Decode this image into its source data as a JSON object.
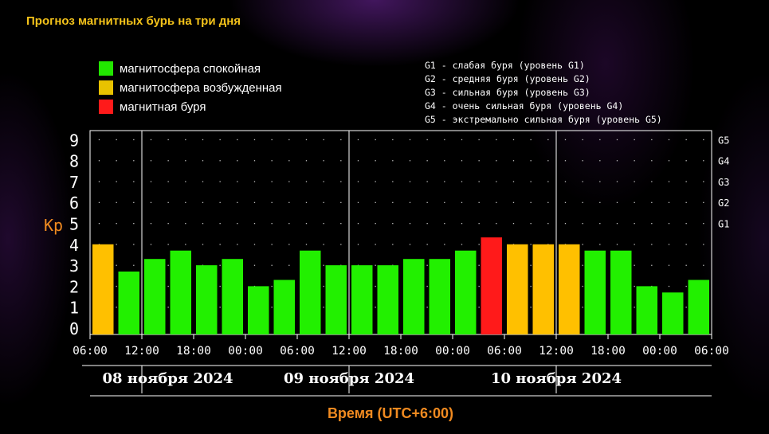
{
  "page": {
    "title": "Прогноз магнитных бурь на три дня"
  },
  "legend": {
    "items": [
      {
        "color": "#22e600",
        "label": "магнитосфера спокойная"
      },
      {
        "color": "#e8c200",
        "label": "магнитосфера возбужденная"
      },
      {
        "color": "#ff1a1a",
        "label": "магнитная буря"
      }
    ],
    "g_levels": [
      "G1 - слабая буря (уровень G1)",
      "G2 - средняя буря (уровень G2)",
      "G3 - сильная буря (уровень G3)",
      "G4 - очень сильная буря (уровень G4)",
      "G5 - экстремально сильная буря (уровень G5)"
    ]
  },
  "colors": {
    "quiet": "#22f000",
    "active": "#ffc000",
    "storm": "#ff1a1a",
    "axis_label": "#f08a20",
    "title": "#f3c21a"
  },
  "chart_data": {
    "type": "bar",
    "ylabel": "Kp",
    "xlabel": "Время (UTC+6:00)",
    "ylim": [
      0,
      9
    ],
    "y_ticks": [
      0,
      1,
      2,
      3,
      4,
      5,
      6,
      7,
      8,
      9
    ],
    "right_ticks": [
      {
        "value": 5,
        "label": "G1"
      },
      {
        "value": 6,
        "label": "G2"
      },
      {
        "value": 7,
        "label": "G3"
      },
      {
        "value": 8,
        "label": "G4"
      },
      {
        "value": 9,
        "label": "G5"
      }
    ],
    "x_tick_labels": [
      "06:00",
      "12:00",
      "18:00",
      "00:00",
      "06:00",
      "12:00",
      "18:00",
      "00:00",
      "06:00",
      "12:00",
      "18:00",
      "00:00",
      "06:00"
    ],
    "x_tick_hours": [
      0,
      6,
      12,
      18,
      24,
      30,
      36,
      42,
      48,
      54,
      60,
      66,
      72
    ],
    "hours_total": 72,
    "day_boundaries_hours": [
      6,
      30,
      54
    ],
    "days": [
      {
        "label": "08 ноября 2024",
        "start": 0,
        "end": 18
      },
      {
        "label": "09 ноября 2024",
        "start": 18,
        "end": 42
      },
      {
        "label": "10 ноября 2024",
        "start": 42,
        "end": 66
      }
    ],
    "bars": [
      {
        "value": 4.0,
        "level": "active"
      },
      {
        "value": 2.7,
        "level": "quiet"
      },
      {
        "value": 3.3,
        "level": "quiet"
      },
      {
        "value": 3.7,
        "level": "quiet"
      },
      {
        "value": 3.0,
        "level": "quiet"
      },
      {
        "value": 3.3,
        "level": "quiet"
      },
      {
        "value": 2.0,
        "level": "quiet"
      },
      {
        "value": 2.3,
        "level": "quiet"
      },
      {
        "value": 3.7,
        "level": "quiet"
      },
      {
        "value": 3.0,
        "level": "quiet"
      },
      {
        "value": 3.0,
        "level": "quiet"
      },
      {
        "value": 3.0,
        "level": "quiet"
      },
      {
        "value": 3.3,
        "level": "quiet"
      },
      {
        "value": 3.3,
        "level": "quiet"
      },
      {
        "value": 3.7,
        "level": "quiet"
      },
      {
        "value": 4.33,
        "level": "storm"
      },
      {
        "value": 4.0,
        "level": "active"
      },
      {
        "value": 4.0,
        "level": "active"
      },
      {
        "value": 4.0,
        "level": "active"
      },
      {
        "value": 3.7,
        "level": "quiet"
      },
      {
        "value": 3.7,
        "level": "quiet"
      },
      {
        "value": 2.0,
        "level": "quiet"
      },
      {
        "value": 1.7,
        "level": "quiet"
      },
      {
        "value": 2.3,
        "level": "quiet"
      }
    ]
  }
}
